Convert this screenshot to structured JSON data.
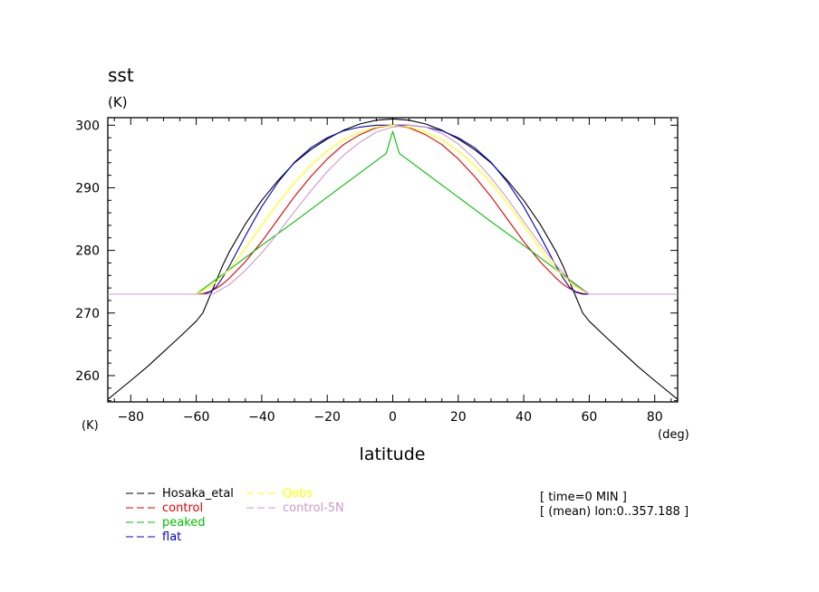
{
  "chart_data": {
    "type": "line",
    "title": "sst",
    "units": "(K)",
    "xlabel": "latitude",
    "x_unit": "(deg)",
    "y_unit": "(K)",
    "xlim": [
      -87,
      87
    ],
    "ylim": [
      255.8,
      301.2
    ],
    "xticks": [
      -80,
      -60,
      -40,
      -20,
      0,
      20,
      40,
      60,
      80
    ],
    "yticks": [
      260,
      270,
      280,
      290,
      300
    ],
    "annotations": [
      "[ time=0 MIN ]",
      "[ (mean) lon:0..357.188 ]"
    ],
    "series": [
      {
        "name": "Hosaka_etal",
        "color": "#000000",
        "points": [
          [
            -87,
            256.2
          ],
          [
            -80,
            259.2
          ],
          [
            -75,
            261.4
          ],
          [
            -70,
            263.8
          ],
          [
            -65,
            266.2
          ],
          [
            -60,
            268.7
          ],
          [
            -58,
            270.0
          ],
          [
            -56,
            272.5
          ],
          [
            -54,
            275.0
          ],
          [
            -52,
            277.5
          ],
          [
            -50,
            279.7
          ],
          [
            -45,
            284.2
          ],
          [
            -40,
            288.0
          ],
          [
            -35,
            291.2
          ],
          [
            -30,
            294.0
          ],
          [
            -25,
            296.1
          ],
          [
            -20,
            297.8
          ],
          [
            -15,
            299.2
          ],
          [
            -10,
            300.2
          ],
          [
            -5,
            300.8
          ],
          [
            0,
            301.0
          ],
          [
            5,
            300.8
          ],
          [
            10,
            300.2
          ],
          [
            15,
            299.2
          ],
          [
            20,
            297.8
          ],
          [
            25,
            296.1
          ],
          [
            30,
            294.0
          ],
          [
            35,
            291.2
          ],
          [
            40,
            288.0
          ],
          [
            45,
            284.2
          ],
          [
            50,
            279.7
          ],
          [
            52,
            277.5
          ],
          [
            54,
            275.0
          ],
          [
            56,
            272.5
          ],
          [
            58,
            270.0
          ],
          [
            60,
            268.7
          ],
          [
            65,
            266.2
          ],
          [
            70,
            263.8
          ],
          [
            75,
            261.4
          ],
          [
            80,
            259.2
          ],
          [
            87,
            256.2
          ]
        ]
      },
      {
        "name": "control",
        "color": "#e00000",
        "points": [
          [
            -87,
            273.0
          ],
          [
            -60,
            273.0
          ],
          [
            -58,
            273.1
          ],
          [
            -56,
            273.4
          ],
          [
            -54,
            273.9
          ],
          [
            -52,
            274.6
          ],
          [
            -50,
            275.5
          ],
          [
            -45,
            278.2
          ],
          [
            -40,
            281.4
          ],
          [
            -35,
            285.0
          ],
          [
            -30,
            288.6
          ],
          [
            -25,
            291.8
          ],
          [
            -20,
            294.6
          ],
          [
            -15,
            296.9
          ],
          [
            -10,
            298.5
          ],
          [
            -5,
            299.6
          ],
          [
            0,
            300.0
          ],
          [
            5,
            299.6
          ],
          [
            10,
            298.5
          ],
          [
            15,
            296.9
          ],
          [
            20,
            294.6
          ],
          [
            25,
            291.8
          ],
          [
            30,
            288.6
          ],
          [
            35,
            285.0
          ],
          [
            40,
            281.4
          ],
          [
            45,
            278.2
          ],
          [
            50,
            275.5
          ],
          [
            52,
            274.6
          ],
          [
            54,
            273.9
          ],
          [
            56,
            273.4
          ],
          [
            58,
            273.1
          ],
          [
            60,
            273.0
          ],
          [
            87,
            273.0
          ]
        ]
      },
      {
        "name": "peaked",
        "color": "#00c000",
        "points": [
          [
            -87,
            273.0
          ],
          [
            -60,
            273.0
          ],
          [
            -50,
            276.9
          ],
          [
            -40,
            280.8
          ],
          [
            -30,
            284.6
          ],
          [
            -20,
            288.5
          ],
          [
            -10,
            292.4
          ],
          [
            -2,
            295.5
          ],
          [
            0,
            299.0
          ],
          [
            2,
            295.5
          ],
          [
            10,
            292.4
          ],
          [
            20,
            288.5
          ],
          [
            30,
            284.6
          ],
          [
            40,
            280.8
          ],
          [
            50,
            276.9
          ],
          [
            60,
            273.0
          ],
          [
            87,
            273.0
          ]
        ]
      },
      {
        "name": "flat",
        "color": "#0000cc",
        "points": [
          [
            -87,
            273.0
          ],
          [
            -58,
            273.0
          ],
          [
            -56,
            273.3
          ],
          [
            -54,
            274.1
          ],
          [
            -52,
            275.6
          ],
          [
            -50,
            277.4
          ],
          [
            -45,
            282.3
          ],
          [
            -40,
            287.0
          ],
          [
            -35,
            290.9
          ],
          [
            -30,
            294.1
          ],
          [
            -25,
            296.4
          ],
          [
            -20,
            298.0
          ],
          [
            -15,
            299.1
          ],
          [
            -10,
            299.7
          ],
          [
            -5,
            300.0
          ],
          [
            0,
            300.0
          ],
          [
            5,
            300.0
          ],
          [
            10,
            299.7
          ],
          [
            15,
            299.1
          ],
          [
            20,
            298.0
          ],
          [
            25,
            296.4
          ],
          [
            30,
            294.1
          ],
          [
            35,
            290.9
          ],
          [
            40,
            287.0
          ],
          [
            45,
            282.3
          ],
          [
            50,
            277.4
          ],
          [
            52,
            275.6
          ],
          [
            54,
            274.1
          ],
          [
            56,
            273.3
          ],
          [
            58,
            273.0
          ],
          [
            87,
            273.0
          ]
        ]
      },
      {
        "name": "Qobs",
        "color": "#ffff00",
        "points": [
          [
            -87,
            273.0
          ],
          [
            -60,
            273.0
          ],
          [
            -55,
            274.4
          ],
          [
            -50,
            277.0
          ],
          [
            -45,
            280.3
          ],
          [
            -40,
            284.0
          ],
          [
            -35,
            287.6
          ],
          [
            -30,
            290.8
          ],
          [
            -25,
            293.6
          ],
          [
            -20,
            295.9
          ],
          [
            -15,
            297.7
          ],
          [
            -10,
            298.9
          ],
          [
            -5,
            299.7
          ],
          [
            0,
            300.0
          ],
          [
            5,
            299.7
          ],
          [
            10,
            298.9
          ],
          [
            15,
            297.7
          ],
          [
            20,
            295.9
          ],
          [
            25,
            293.6
          ],
          [
            30,
            290.8
          ],
          [
            35,
            287.6
          ],
          [
            40,
            284.0
          ],
          [
            45,
            280.3
          ],
          [
            50,
            277.0
          ],
          [
            55,
            274.4
          ],
          [
            60,
            273.0
          ],
          [
            87,
            273.0
          ]
        ]
      },
      {
        "name": "control-5N",
        "color": "#cc99cc",
        "points": [
          [
            -87,
            273.0
          ],
          [
            -55,
            273.0
          ],
          [
            -50,
            274.5
          ],
          [
            -45,
            276.8
          ],
          [
            -40,
            279.6
          ],
          [
            -35,
            282.8
          ],
          [
            -30,
            286.2
          ],
          [
            -25,
            289.5
          ],
          [
            -20,
            292.6
          ],
          [
            -15,
            295.2
          ],
          [
            -10,
            297.3
          ],
          [
            -5,
            298.9
          ],
          [
            0,
            299.7
          ],
          [
            5,
            300.0
          ],
          [
            10,
            299.7
          ],
          [
            15,
            298.7
          ],
          [
            20,
            297.0
          ],
          [
            25,
            294.6
          ],
          [
            30,
            291.6
          ],
          [
            35,
            288.3
          ],
          [
            40,
            284.6
          ],
          [
            45,
            281.0
          ],
          [
            50,
            277.6
          ],
          [
            55,
            274.7
          ],
          [
            60,
            273.0
          ],
          [
            87,
            273.0
          ]
        ]
      }
    ]
  }
}
